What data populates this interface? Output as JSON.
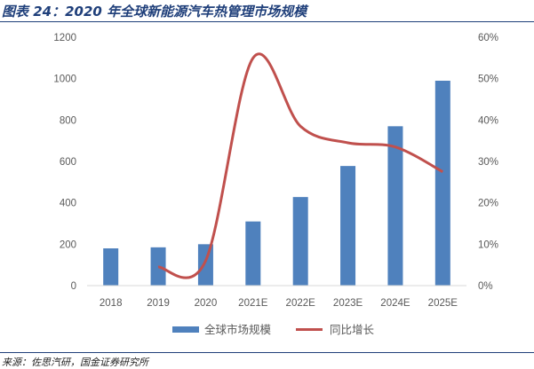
{
  "title": "图表 24：2020 年全球新能源汽车热管理市场规模",
  "source": "来源：佐思汽研，国金证券研究所",
  "chart_data": {
    "type": "bar+line",
    "categories": [
      "2018",
      "2019",
      "2020",
      "2021E",
      "2022E",
      "2023E",
      "2024E",
      "2025E"
    ],
    "series": [
      {
        "name": "全球市场规模",
        "type": "bar",
        "axis": "left",
        "values": [
          180,
          185,
          200,
          310,
          428,
          578,
          770,
          990
        ]
      },
      {
        "name": "同比增长",
        "type": "line",
        "axis": "right",
        "smooth": true,
        "values": [
          null,
          0.045,
          0.06,
          0.55,
          0.385,
          0.345,
          0.335,
          0.275
        ]
      }
    ],
    "left_axis": {
      "min": 0,
      "max": 1200,
      "ticks": [
        "0",
        "200",
        "400",
        "600",
        "800",
        "1000",
        "1200"
      ]
    },
    "right_axis": {
      "min": 0,
      "max": 0.6,
      "ticks": [
        "0%",
        "10%",
        "20%",
        "30%",
        "40%",
        "50%",
        "60%"
      ]
    },
    "legend_position": "bottom",
    "colors": {
      "bar": "#4f81bd",
      "line": "#c0504d"
    }
  }
}
